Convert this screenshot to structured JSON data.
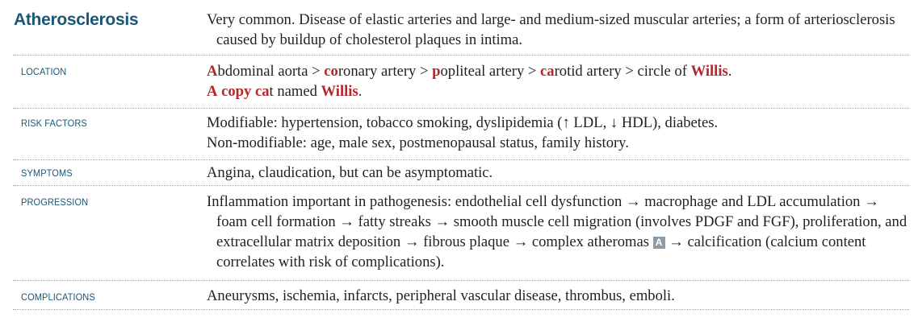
{
  "title": "Atherosclerosis",
  "intro": "Very common. Disease of elastic arteries and large- and medium-sized muscular arteries; a form of arteriosclerosis caused by buildup of cholesterol plaques in intima.",
  "sections": {
    "location": {
      "label": "LOCATION",
      "line1": {
        "a1": "A",
        "a2": "bdominal aorta > ",
        "b1": "co",
        "b2": "ronary artery > ",
        "c1": "p",
        "c2": "opliteal artery > ",
        "d1": "ca",
        "d2": "rotid artery  > circle of ",
        "e1": "Willis",
        "e2": "."
      },
      "line2": {
        "m1": "A",
        "m2": " ",
        "m3": "copy",
        "m4": " ",
        "m5": "ca",
        "m6": "t named ",
        "m7": "Willis",
        "m8": "."
      }
    },
    "risk_factors": {
      "label": "RISK FACTORS",
      "line1": "Modifiable: hypertension, tobacco smoking, dyslipidemia (↑ LDL, ↓ HDL), diabetes.",
      "line2": "Non-modifiable: age, male sex, postmenopausal status, family history."
    },
    "symptoms": {
      "label": "SYMPTOMS",
      "text": "Angina, claudication, but can be asymptomatic."
    },
    "progression": {
      "label": "PROGRESSION",
      "text_before_badge": "Inflammation important in pathogenesis: endothelial cell dysfunction → macrophage and LDL accumulation → foam cell formation → fatty streaks → smooth muscle cell migration (involves PDGF and FGF), proliferation, and extracellular matrix deposition → fibrous plaque → complex atheromas ",
      "badge": "A",
      "text_after_badge": " → calcification (calcium content correlates with risk of complications)."
    },
    "complications": {
      "label": "COMPLICATIONS",
      "text": "Aneurysms, ischemia, infarcts, peripheral vascular disease, thrombus, emboli."
    }
  },
  "colors": {
    "heading": "#1b5775",
    "mnemonic_red": "#b3272d",
    "body_text": "#231f20",
    "badge_bg": "#8e9ba5",
    "separator": "#9aa8b4"
  }
}
